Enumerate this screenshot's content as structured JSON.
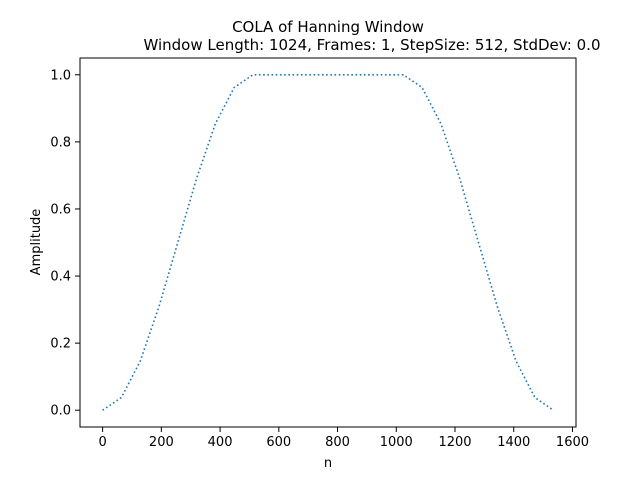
{
  "chart_data": {
    "type": "line",
    "title": "COLA of Hanning Window",
    "subtitle": "Window Length: 1024, Frames: 1, StepSize: 512, StdDev: 0.0",
    "xlabel": "n",
    "ylabel": "Amplitude",
    "xlim": [
      -77,
      1612
    ],
    "ylim": [
      -0.05,
      1.05
    ],
    "xticks": [
      0,
      200,
      400,
      600,
      800,
      1000,
      1200,
      1400,
      1600
    ],
    "yticks": [
      0.0,
      0.2,
      0.4,
      0.6,
      0.8,
      1.0
    ],
    "xtick_labels": [
      "0",
      "200",
      "400",
      "600",
      "800",
      "1000",
      "1200",
      "1400",
      "1600"
    ],
    "ytick_labels": [
      "0.0",
      "0.2",
      "0.4",
      "0.6",
      "0.8",
      "1.0"
    ],
    "grid": false,
    "line_style": "dotted",
    "series": [
      {
        "color": "#1f77b4",
        "x": [
          0,
          64,
          128,
          192,
          256,
          320,
          384,
          448,
          512,
          576,
          640,
          704,
          768,
          832,
          896,
          960,
          1024,
          1088,
          1152,
          1216,
          1280,
          1344,
          1408,
          1472,
          1535
        ],
        "values": [
          0.0,
          0.038,
          0.146,
          0.309,
          0.5,
          0.691,
          0.854,
          0.962,
          1.0,
          1.0,
          1.0,
          1.0,
          1.0,
          1.0,
          1.0,
          1.0,
          1.0,
          0.962,
          0.854,
          0.691,
          0.5,
          0.309,
          0.146,
          0.038,
          0.0
        ]
      }
    ]
  }
}
